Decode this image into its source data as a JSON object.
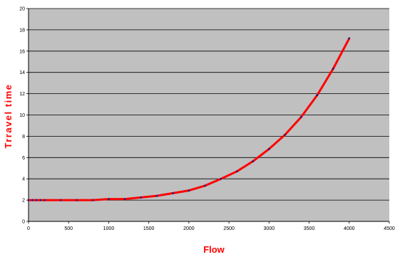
{
  "chart_data": {
    "type": "line",
    "title": "",
    "xlabel": "Flow",
    "ylabel": "Trravel time",
    "xlim": [
      0,
      4500
    ],
    "ylim": [
      0,
      20
    ],
    "xticks": [
      "0",
      "500",
      "1000",
      "1500",
      "2000",
      "2500",
      "3000",
      "3500",
      "4000",
      "4500"
    ],
    "yticks": [
      "0",
      "2",
      "4",
      "6",
      "8",
      "10",
      "12",
      "14",
      "16",
      "18",
      "20"
    ],
    "grid": "horizontal",
    "legend": "none",
    "colors": {
      "plot_background": "#c0c0c0",
      "line": "#ff0000",
      "marker": "#1a1a8c",
      "axis_title": "#ff0000",
      "grid": "#000000"
    },
    "series": [
      {
        "x": [
          0,
          50,
          100,
          150,
          200,
          400,
          600,
          800,
          1000,
          1200,
          1400,
          1600,
          1800,
          2000,
          2200,
          2400,
          2600,
          2800,
          3000,
          3200,
          3400,
          3600,
          3800,
          4000
        ],
        "y": [
          2.0,
          2.0,
          2.0,
          2.0,
          2.0,
          2.0,
          2.0,
          2.0,
          2.1,
          2.1,
          2.25,
          2.4,
          2.65,
          2.9,
          3.35,
          4.0,
          4.7,
          5.65,
          6.8,
          8.15,
          9.8,
          11.85,
          14.35,
          17.2
        ]
      }
    ]
  }
}
